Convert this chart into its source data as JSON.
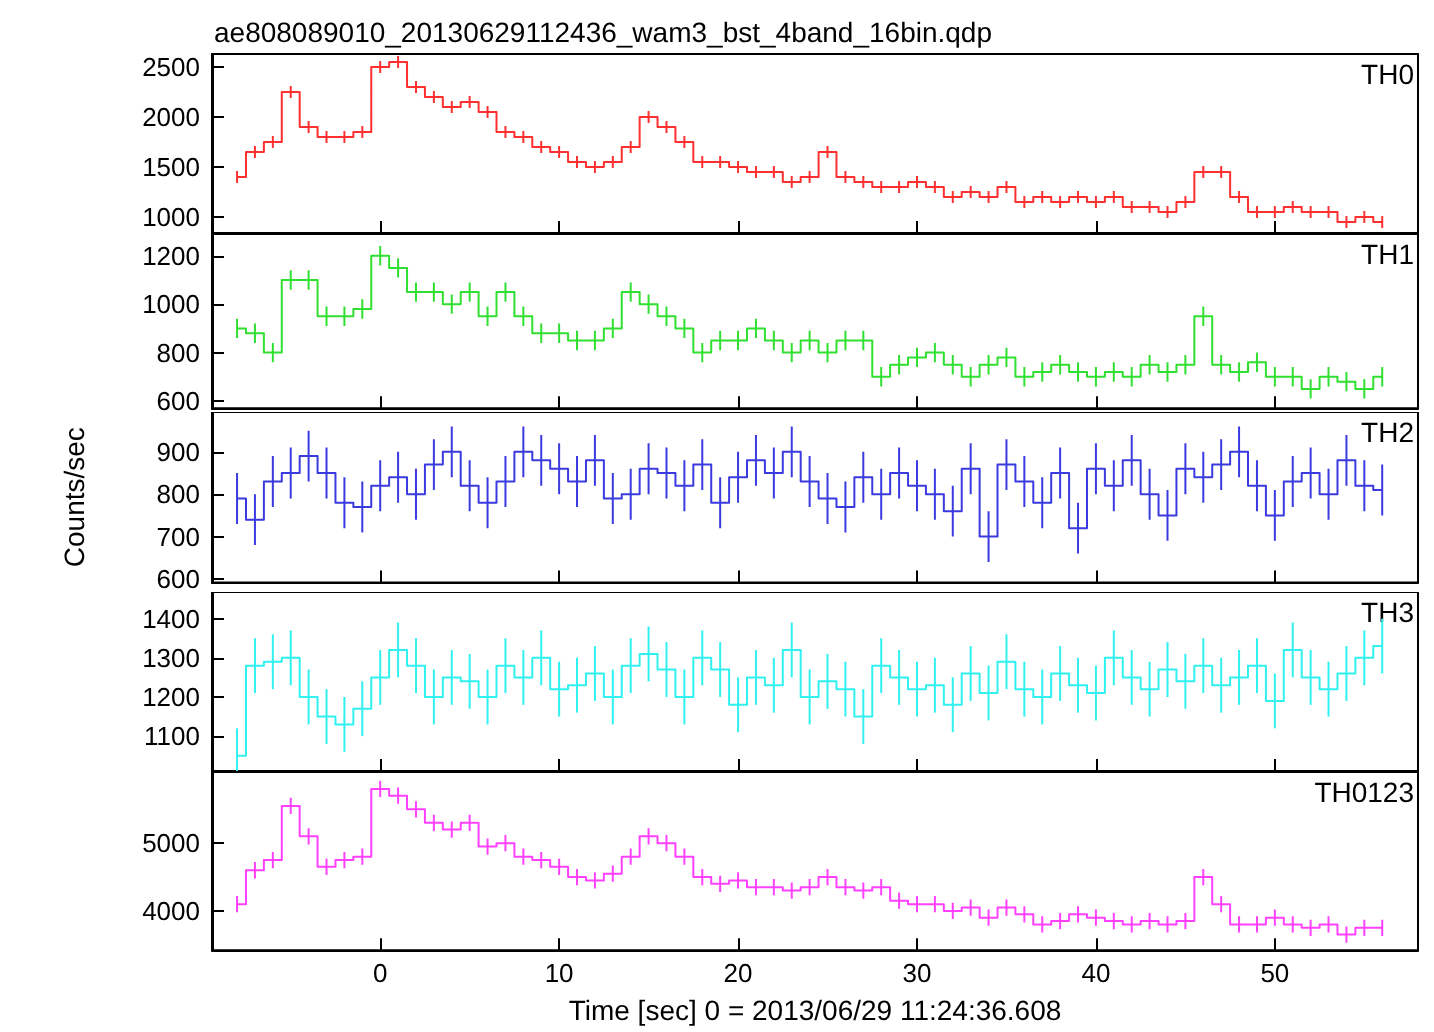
{
  "chart_data": [
    {
      "type": "step",
      "title": "ae808089010_20130629112436_wam3_bst_4band_16bin.qdp",
      "annotations": [
        "TH0"
      ],
      "tick_labels": "y",
      "xlim": [
        -9.4,
        58
      ],
      "xticks": [
        0,
        10,
        20,
        30,
        40,
        50
      ],
      "ylim": [
        840,
        2630
      ],
      "yticks": [
        1000,
        1500,
        2000,
        2500
      ],
      "x": [
        -8,
        -7,
        -6,
        -5,
        -4,
        -3,
        -2,
        -1,
        0,
        1,
        2,
        3,
        4,
        5,
        6,
        7,
        8,
        9,
        10,
        11,
        12,
        13,
        14,
        15,
        16,
        17,
        18,
        19,
        20,
        21,
        22,
        23,
        24,
        25,
        26,
        27,
        28,
        29,
        30,
        31,
        32,
        33,
        34,
        35,
        36,
        37,
        38,
        39,
        40,
        41,
        42,
        43,
        44,
        45,
        46,
        47,
        48,
        49,
        50,
        51,
        52,
        53,
        54,
        55,
        56
      ],
      "series": [
        {
          "color": "#ff3030",
          "values": [
            1400,
            1650,
            1750,
            2250,
            1900,
            1800,
            1800,
            1850,
            2500,
            2550,
            2300,
            2200,
            2100,
            2150,
            2050,
            1850,
            1800,
            1700,
            1650,
            1550,
            1500,
            1550,
            1700,
            2000,
            1900,
            1750,
            1550,
            1550,
            1500,
            1450,
            1450,
            1350,
            1400,
            1650,
            1400,
            1350,
            1300,
            1300,
            1350,
            1300,
            1200,
            1250,
            1200,
            1300,
            1150,
            1200,
            1150,
            1200,
            1150,
            1200,
            1100,
            1100,
            1050,
            1150,
            1450,
            1450,
            1200,
            1050,
            1050,
            1100,
            1050,
            1050,
            950,
            1000,
            950
          ],
          "errors": [
            60,
            60,
            60,
            60,
            60,
            60,
            60,
            60,
            60,
            60,
            60,
            60,
            60,
            60,
            60,
            60,
            60,
            60,
            60,
            60,
            60,
            60,
            60,
            60,
            60,
            60,
            60,
            60,
            60,
            60,
            60,
            60,
            60,
            60,
            60,
            60,
            60,
            60,
            60,
            60,
            60,
            60,
            60,
            60,
            60,
            60,
            60,
            60,
            60,
            60,
            60,
            60,
            60,
            60,
            60,
            60,
            60,
            60,
            60,
            60,
            60,
            60,
            60,
            60,
            60
          ]
        }
      ]
    },
    {
      "type": "step",
      "annotations": [
        "TH1"
      ],
      "tick_labels": "y",
      "xlim": [
        -9.4,
        58
      ],
      "xticks": [
        0,
        10,
        20,
        30,
        40,
        50
      ],
      "ylim": [
        570,
        1290
      ],
      "yticks": [
        600,
        800,
        1000,
        1200
      ],
      "x": [
        -8,
        -7,
        -6,
        -5,
        -4,
        -3,
        -2,
        -1,
        0,
        1,
        2,
        3,
        4,
        5,
        6,
        7,
        8,
        9,
        10,
        11,
        12,
        13,
        14,
        15,
        16,
        17,
        18,
        19,
        20,
        21,
        22,
        23,
        24,
        25,
        26,
        27,
        28,
        29,
        30,
        31,
        32,
        33,
        34,
        35,
        36,
        37,
        38,
        39,
        40,
        41,
        42,
        43,
        44,
        45,
        46,
        47,
        48,
        49,
        50,
        51,
        52,
        53,
        54,
        55,
        56
      ],
      "series": [
        {
          "color": "#30e030",
          "values": [
            900,
            880,
            800,
            1100,
            1100,
            950,
            950,
            980,
            1200,
            1150,
            1050,
            1050,
            1000,
            1050,
            950,
            1050,
            950,
            880,
            880,
            850,
            850,
            900,
            1050,
            1000,
            950,
            900,
            800,
            850,
            850,
            900,
            850,
            800,
            850,
            800,
            850,
            850,
            700,
            750,
            780,
            800,
            750,
            700,
            750,
            780,
            700,
            720,
            750,
            720,
            700,
            720,
            700,
            750,
            720,
            750,
            950,
            750,
            720,
            760,
            700,
            700,
            650,
            700,
            680,
            650,
            700
          ],
          "errors": [
            40,
            40,
            40,
            40,
            40,
            40,
            40,
            40,
            40,
            40,
            40,
            40,
            40,
            40,
            40,
            40,
            40,
            40,
            40,
            40,
            40,
            40,
            40,
            40,
            40,
            40,
            40,
            40,
            40,
            40,
            40,
            40,
            40,
            40,
            40,
            40,
            40,
            40,
            40,
            40,
            40,
            40,
            40,
            40,
            40,
            40,
            40,
            40,
            40,
            40,
            40,
            40,
            40,
            40,
            40,
            40,
            40,
            40,
            40,
            40,
            40,
            40,
            40,
            40,
            40
          ]
        }
      ]
    },
    {
      "type": "step",
      "annotations": [
        "TH2"
      ],
      "ylabel": "Counts/sec",
      "tick_labels": "y",
      "xlim": [
        -9.4,
        58
      ],
      "xticks": [
        0,
        10,
        20,
        30,
        40,
        50
      ],
      "ylim": [
        592,
        994
      ],
      "yticks": [
        600,
        700,
        800,
        900
      ],
      "x": [
        -8,
        -7,
        -6,
        -5,
        -4,
        -3,
        -2,
        -1,
        0,
        1,
        2,
        3,
        4,
        5,
        6,
        7,
        8,
        9,
        10,
        11,
        12,
        13,
        14,
        15,
        16,
        17,
        18,
        19,
        20,
        21,
        22,
        23,
        24,
        25,
        26,
        27,
        28,
        29,
        30,
        31,
        32,
        33,
        34,
        35,
        36,
        37,
        38,
        39,
        40,
        41,
        42,
        43,
        44,
        45,
        46,
        47,
        48,
        49,
        50,
        51,
        52,
        53,
        54,
        55,
        56
      ],
      "series": [
        {
          "color": "#3a3ae0",
          "values": [
            790,
            740,
            830,
            850,
            890,
            850,
            780,
            770,
            820,
            840,
            800,
            870,
            900,
            820,
            780,
            830,
            900,
            880,
            860,
            830,
            880,
            790,
            800,
            860,
            850,
            820,
            870,
            780,
            840,
            880,
            850,
            900,
            830,
            790,
            770,
            840,
            800,
            850,
            820,
            800,
            760,
            860,
            700,
            870,
            830,
            780,
            850,
            720,
            860,
            820,
            880,
            800,
            750,
            860,
            840,
            870,
            900,
            820,
            750,
            830,
            850,
            800,
            880,
            820,
            810
          ],
          "errors": [
            60,
            60,
            60,
            60,
            60,
            60,
            60,
            60,
            60,
            60,
            60,
            60,
            60,
            60,
            60,
            60,
            60,
            60,
            60,
            60,
            60,
            60,
            60,
            60,
            60,
            60,
            60,
            60,
            60,
            60,
            60,
            60,
            60,
            60,
            60,
            60,
            60,
            60,
            60,
            60,
            60,
            60,
            60,
            60,
            60,
            60,
            60,
            60,
            60,
            60,
            60,
            60,
            60,
            60,
            60,
            60,
            60,
            60,
            60,
            60,
            60,
            60,
            60,
            60,
            60
          ]
        }
      ]
    },
    {
      "type": "step",
      "annotations": [
        "TH3"
      ],
      "tick_labels": "y",
      "xlim": [
        -9.4,
        58
      ],
      "xticks": [
        0,
        10,
        20,
        30,
        40,
        50
      ],
      "ylim": [
        1011,
        1468
      ],
      "yticks": [
        1100,
        1200,
        1300,
        1400
      ],
      "x": [
        -8,
        -7,
        -6,
        -5,
        -4,
        -3,
        -2,
        -1,
        0,
        1,
        2,
        3,
        4,
        5,
        6,
        7,
        8,
        9,
        10,
        11,
        12,
        13,
        14,
        15,
        16,
        17,
        18,
        19,
        20,
        21,
        22,
        23,
        24,
        25,
        26,
        27,
        28,
        29,
        30,
        31,
        32,
        33,
        34,
        35,
        36,
        37,
        38,
        39,
        40,
        41,
        42,
        43,
        44,
        45,
        46,
        47,
        48,
        49,
        50,
        51,
        52,
        53,
        54,
        55,
        56
      ],
      "series": [
        {
          "color": "#30f0f0",
          "values": [
            1050,
            1280,
            1290,
            1300,
            1200,
            1150,
            1130,
            1170,
            1250,
            1320,
            1280,
            1200,
            1250,
            1240,
            1200,
            1280,
            1250,
            1300,
            1220,
            1230,
            1260,
            1200,
            1280,
            1310,
            1270,
            1200,
            1300,
            1270,
            1180,
            1250,
            1230,
            1320,
            1200,
            1240,
            1220,
            1150,
            1280,
            1250,
            1220,
            1230,
            1180,
            1260,
            1210,
            1290,
            1220,
            1200,
            1260,
            1230,
            1210,
            1300,
            1250,
            1220,
            1270,
            1240,
            1280,
            1230,
            1250,
            1280,
            1190,
            1320,
            1250,
            1220,
            1260,
            1300,
            1330
          ],
          "errors": [
            70,
            70,
            70,
            70,
            70,
            70,
            70,
            70,
            70,
            70,
            70,
            70,
            70,
            70,
            70,
            70,
            70,
            70,
            70,
            70,
            70,
            70,
            70,
            70,
            70,
            70,
            70,
            70,
            70,
            70,
            70,
            70,
            70,
            70,
            70,
            70,
            70,
            70,
            70,
            70,
            70,
            70,
            70,
            70,
            70,
            70,
            70,
            70,
            70,
            70,
            70,
            70,
            70,
            70,
            70,
            70,
            70,
            70,
            70,
            70,
            70,
            70,
            70,
            70,
            70
          ]
        }
      ]
    },
    {
      "type": "step",
      "annotations": [
        "TH0123"
      ],
      "xlabel": "Time [sec] 0 = 2013/06/29 11:24:36.608",
      "xlim": [
        -9.4,
        58
      ],
      "xticks": [
        0,
        10,
        20,
        30,
        40,
        50
      ],
      "ylim": [
        3420,
        6050
      ],
      "yticks": [
        4000,
        5000
      ],
      "x": [
        -8,
        -7,
        -6,
        -5,
        -4,
        -3,
        -2,
        -1,
        0,
        1,
        2,
        3,
        4,
        5,
        6,
        7,
        8,
        9,
        10,
        11,
        12,
        13,
        14,
        15,
        16,
        17,
        18,
        19,
        20,
        21,
        22,
        23,
        24,
        25,
        26,
        27,
        28,
        29,
        30,
        31,
        32,
        33,
        34,
        35,
        36,
        37,
        38,
        39,
        40,
        41,
        42,
        43,
        44,
        45,
        46,
        47,
        48,
        49,
        50,
        51,
        52,
        53,
        54,
        55,
        56
      ],
      "series": [
        {
          "color": "#ff40ff",
          "values": [
            4100,
            4600,
            4750,
            5550,
            5100,
            4650,
            4750,
            4800,
            5800,
            5700,
            5500,
            5300,
            5200,
            5300,
            4950,
            5000,
            4800,
            4750,
            4650,
            4500,
            4450,
            4550,
            4800,
            5100,
            5000,
            4800,
            4500,
            4400,
            4450,
            4350,
            4350,
            4300,
            4350,
            4500,
            4350,
            4300,
            4350,
            4150,
            4100,
            4100,
            4000,
            4050,
            3900,
            4050,
            3950,
            3800,
            3850,
            3950,
            3900,
            3850,
            3800,
            3850,
            3800,
            3850,
            4500,
            4100,
            3800,
            3800,
            3900,
            3800,
            3750,
            3800,
            3650,
            3750,
            3750
          ],
          "errors": [
            120,
            120,
            120,
            120,
            120,
            120,
            120,
            120,
            120,
            120,
            120,
            120,
            120,
            120,
            120,
            120,
            120,
            120,
            120,
            120,
            120,
            120,
            120,
            120,
            120,
            120,
            120,
            120,
            120,
            120,
            120,
            120,
            120,
            120,
            120,
            120,
            120,
            120,
            120,
            120,
            120,
            120,
            120,
            120,
            120,
            120,
            120,
            120,
            120,
            120,
            120,
            120,
            120,
            120,
            120,
            120,
            120,
            120,
            120,
            120,
            120,
            120,
            120,
            120,
            120
          ]
        }
      ]
    }
  ]
}
